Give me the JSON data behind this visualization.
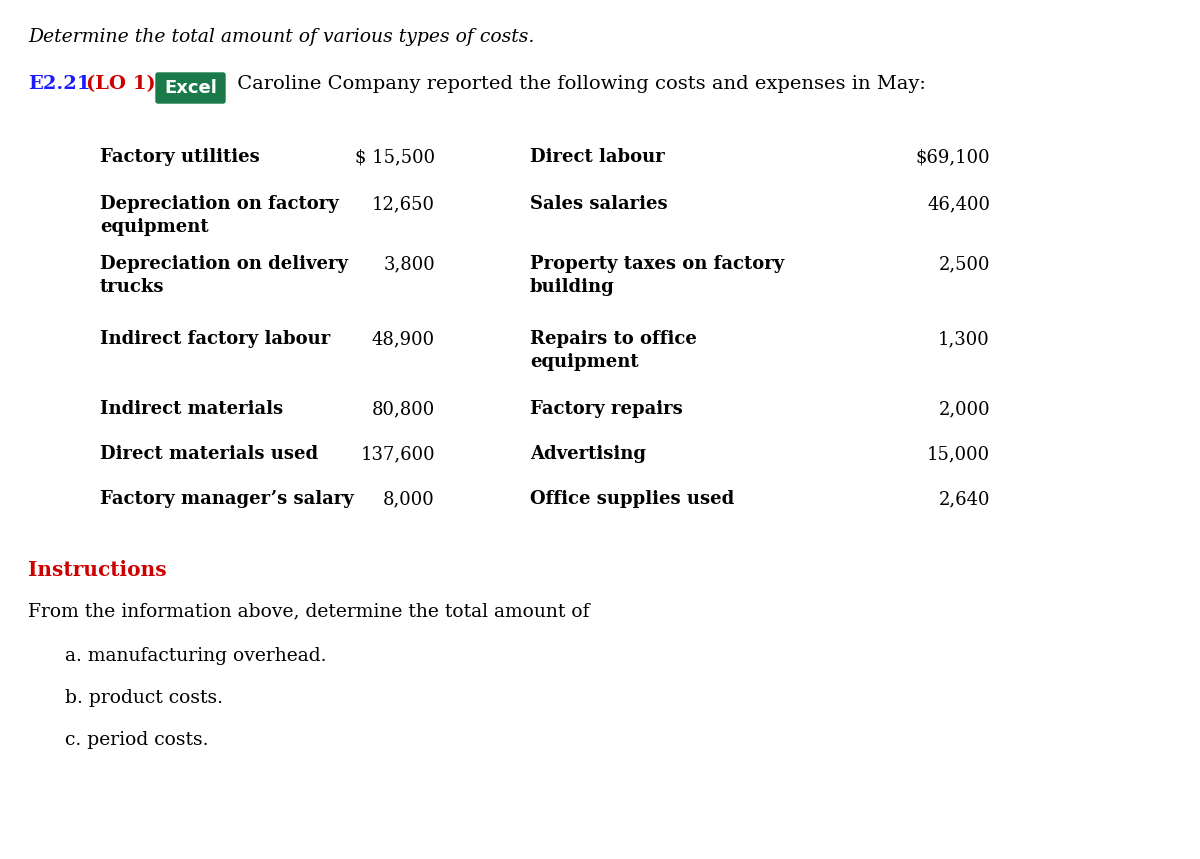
{
  "title_italic": "Determine the total amount of various types of costs.",
  "header_e221": "E2.21",
  "header_lo1": "(LO 1)",
  "header_excel": "Excel",
  "header_rest": " Caroline Company reported the following costs and expenses in May:",
  "bg_color": "#ffffff",
  "title_color": "#000000",
  "red_color": "#cc0000",
  "blue_color": "#1a1aff",
  "excel_bg": "#1a7a4a",
  "excel_text": "#ffffff",
  "left_items": [
    [
      "Factory utilities",
      "$ 15,500"
    ],
    [
      "Depreciation on factory\nequipment",
      "12,650"
    ],
    [
      "Depreciation on delivery\ntrucks",
      "3,800"
    ],
    [
      "Indirect factory labour",
      "48,900"
    ],
    [
      "Indirect materials",
      "80,800"
    ],
    [
      "Direct materials used",
      "137,600"
    ],
    [
      "Factory manager’s salary",
      "8,000"
    ]
  ],
  "right_items": [
    [
      "Direct labour",
      "$69,100"
    ],
    [
      "Sales salaries",
      "46,400"
    ],
    [
      "Property taxes on factory\nbuilding",
      "2,500"
    ],
    [
      "Repairs to office\nequipment",
      "1,300"
    ],
    [
      "Factory repairs",
      "2,000"
    ],
    [
      "Advertising",
      "15,000"
    ],
    [
      "Office supplies used",
      "2,640"
    ]
  ],
  "instructions_label": "Instructions",
  "instructions_text": "From the information above, determine the total amount of",
  "items_abc": [
    "a. manufacturing overhead.",
    "b. product costs.",
    "c. period costs."
  ],
  "font_size_title": 13.5,
  "font_size_header": 14,
  "font_size_table": 13,
  "font_size_instructions": 13.5
}
